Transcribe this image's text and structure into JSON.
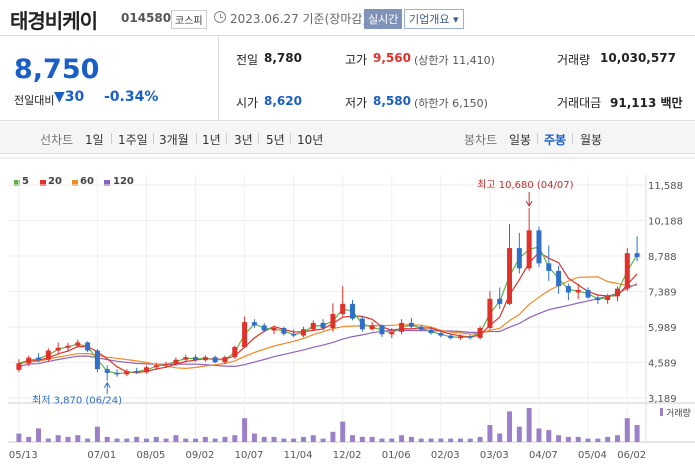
{
  "header": {
    "name": "태경비케이",
    "code": "014580",
    "market": "코스피",
    "date": "2023.06.27 기준(장마감)",
    "realtime_button": "실시간",
    "company_button": "기업개요 ▾"
  },
  "quote": {
    "price": "8,750",
    "change_label": "전일대비",
    "change_value": "▼30",
    "change_percent": "-0.34%",
    "prev_close_label": "전일",
    "prev_close": "8,780",
    "high_label": "고가",
    "high": "9,560",
    "high_limit": "(상한가 11,410)",
    "volume_label": "거래량",
    "volume": "10,030,577",
    "open_label": "시가",
    "open": "8,620",
    "low_label": "저가",
    "low": "8,580",
    "low_limit": "(하한가 6,150)",
    "amount_label": "거래대금",
    "amount": "91,113 백만"
  },
  "tabs": {
    "line_chart": "선차트",
    "periods": [
      "1일",
      "1주일",
      "3개월",
      "1년",
      "3년",
      "5년",
      "10년"
    ],
    "candle_chart": "봉차트",
    "candle_periods": [
      "일봉",
      "주봉",
      "월봉"
    ],
    "active": "주봉"
  },
  "colors": {
    "up": "#e0312a",
    "down": "#2f6fc9",
    "ma5": "#5cb346",
    "ma20": "#e0312a",
    "ma60": "#f08a24",
    "ma120": "#8e62c2",
    "volume": "#9b80c9"
  },
  "chart_data": {
    "type": "candlestick",
    "legend": [
      {
        "name": "5",
        "color": "#5cb346"
      },
      {
        "name": "20",
        "color": "#e0312a"
      },
      {
        "name": "60",
        "color": "#f08a24"
      },
      {
        "name": "120",
        "color": "#8e62c2"
      }
    ],
    "y_ticks": [
      "11,588",
      "10,188",
      "8,788",
      "7,389",
      "5,989",
      "4,589",
      "3,189"
    ],
    "ylim": [
      3189,
      11588
    ],
    "x_ticks": [
      "05/13",
      "07/01",
      "08/05",
      "09/02",
      "10/07",
      "11/04",
      "12/02",
      "01/06",
      "02/03",
      "03/03",
      "04/07",
      "05/04",
      "06/02"
    ],
    "annotations": {
      "high_label": "최고 10,680 (04/07)",
      "low_label": "최저 3,870 (06/24)"
    },
    "volume_label": "거래량",
    "candles": [
      [
        4300,
        4720,
        4210,
        4560
      ],
      [
        4560,
        4860,
        4440,
        4780
      ],
      [
        4780,
        4960,
        4600,
        4700
      ],
      [
        4700,
        5150,
        4620,
        5060
      ],
      [
        5060,
        5380,
        4950,
        5170
      ],
      [
        5170,
        5360,
        5000,
        5250
      ],
      [
        5250,
        5490,
        5180,
        5380
      ],
      [
        5380,
        5420,
        5000,
        5060
      ],
      [
        5060,
        5120,
        4200,
        4330
      ],
      [
        4330,
        4480,
        3870,
        4180
      ],
      [
        4180,
        4320,
        4030,
        4120
      ],
      [
        4120,
        4330,
        4050,
        4250
      ],
      [
        4250,
        4380,
        4130,
        4200
      ],
      [
        4200,
        4470,
        4150,
        4400
      ],
      [
        4400,
        4580,
        4300,
        4480
      ],
      [
        4480,
        4620,
        4380,
        4540
      ],
      [
        4540,
        4790,
        4450,
        4700
      ],
      [
        4700,
        4900,
        4600,
        4800
      ],
      [
        4800,
        4900,
        4620,
        4680
      ],
      [
        4680,
        4880,
        4620,
        4800
      ],
      [
        4800,
        4860,
        4560,
        4600
      ],
      [
        4600,
        4860,
        4520,
        4800
      ],
      [
        4800,
        5260,
        4740,
        5200
      ],
      [
        5200,
        6400,
        5150,
        6180
      ],
      [
        6180,
        6300,
        5950,
        6050
      ],
      [
        6050,
        6150,
        5780,
        5850
      ],
      [
        5850,
        6050,
        5700,
        5950
      ],
      [
        5950,
        6000,
        5650,
        5720
      ],
      [
        5720,
        5900,
        5580,
        5650
      ],
      [
        5650,
        6000,
        5580,
        5900
      ],
      [
        5900,
        6250,
        5850,
        6150
      ],
      [
        6150,
        6300,
        5850,
        5950
      ],
      [
        5950,
        6920,
        5800,
        6500
      ],
      [
        6500,
        7600,
        6400,
        6900
      ],
      [
        6900,
        7050,
        6250,
        6320
      ],
      [
        6320,
        6420,
        5800,
        5900
      ],
      [
        5900,
        6200,
        5850,
        6050
      ],
      [
        6050,
        6100,
        5600,
        5700
      ],
      [
        5700,
        5950,
        5550,
        5800
      ],
      [
        5800,
        6300,
        5700,
        6150
      ],
      [
        6150,
        6350,
        5950,
        6000
      ],
      [
        6000,
        6060,
        5820,
        5880
      ],
      [
        5880,
        6000,
        5680,
        5750
      ],
      [
        5750,
        5850,
        5580,
        5650
      ],
      [
        5650,
        5700,
        5500,
        5550
      ],
      [
        5550,
        5700,
        5480,
        5620
      ],
      [
        5620,
        5680,
        5500,
        5560
      ],
      [
        5560,
        6020,
        5500,
        5950
      ],
      [
        5950,
        7400,
        5880,
        7100
      ],
      [
        7100,
        7550,
        6700,
        6900
      ],
      [
        6900,
        10050,
        6850,
        9100
      ],
      [
        9100,
        9700,
        8100,
        8300
      ],
      [
        8300,
        10680,
        8200,
        9800
      ],
      [
        9800,
        9950,
        8350,
        8500
      ],
      [
        8500,
        9200,
        7800,
        8200
      ],
      [
        8200,
        8400,
        7300,
        7600
      ],
      [
        7600,
        7700,
        7050,
        7350
      ],
      [
        7350,
        7700,
        7100,
        7450
      ],
      [
        7450,
        7550,
        7100,
        7150
      ],
      [
        7150,
        7250,
        6900,
        7050
      ],
      [
        7050,
        7300,
        6900,
        7200
      ],
      [
        7200,
        7600,
        7000,
        7500
      ],
      [
        7500,
        9100,
        7400,
        8900
      ],
      [
        8900,
        9560,
        8580,
        8750
      ]
    ],
    "volumes": [
      5,
      3,
      8,
      2,
      4,
      3,
      4,
      2,
      9,
      3,
      2,
      2,
      3,
      2,
      3,
      2,
      4,
      2,
      2,
      3,
      2,
      3,
      4,
      14,
      5,
      3,
      3,
      2,
      2,
      3,
      4,
      2,
      6,
      12,
      4,
      3,
      3,
      2,
      2,
      4,
      3,
      2,
      2,
      2,
      2,
      2,
      2,
      3,
      10,
      5,
      18,
      9,
      20,
      8,
      7,
      4,
      3,
      3,
      2,
      2,
      3,
      4,
      14,
      10
    ]
  }
}
